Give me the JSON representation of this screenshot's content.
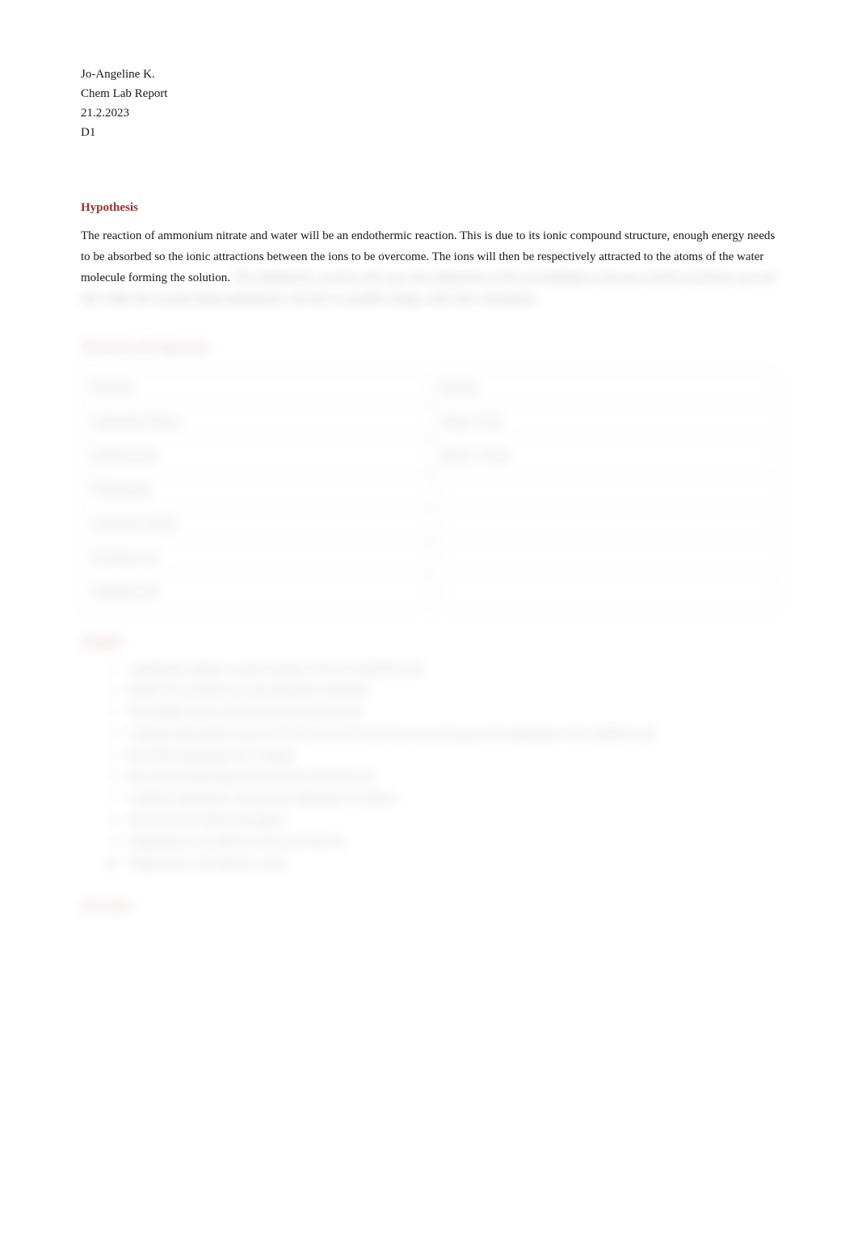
{
  "header": {
    "name": "Jo-Angeline K.",
    "course": "Chem Lab Report",
    "date": "21.2.2023",
    "section": "D1"
  },
  "hypothesis": {
    "heading": "Hypothesis",
    "visible_text": "The reaction of ammonium nitrate and water will be an endothermic reaction. This is due to its ionic compound structure, enough energy needs to be absorbed so the ionic attractions between the ions to be overcome. The ions will then be respectively attracted to the atoms of the water molecule forming the solution.",
    "blurred_line1": "The endothermic reaction will cause the temperature of the surroundings to decrease and the styrofoam cup",
    "blurred_line2": "will feel colder the reactant being endothermic will have a possible change value after calculations."
  },
  "materials": {
    "heading": "Materials and Apparatus",
    "columns": [
      "Materials",
      "Quantity"
    ],
    "rows": [
      [
        "Ammonium Nitrate",
        "10.0g ± 0.01g"
      ],
      [
        "Distilled water",
        "100cm ± 0.5cm"
      ],
      [
        "Thermometer",
        "1"
      ],
      [
        "Graduated cylinder",
        "1"
      ],
      [
        "Styrofoam cup",
        "1"
      ],
      [
        "Weighing scale",
        "1"
      ]
    ]
  },
  "method": {
    "heading": "Method",
    "steps": [
      "A graduated cylinder is used to measure 100 cm of distilled water",
      "Prepare the styrofoam cup and setup table stand/hook",
      "The distilled water is poured into the styrofoam cup",
      "Using the thermometer, insert it into the hole of the styrofoam cup and measure the temperature of the distilled water",
      "Record the temperature for 3 minutes",
      "Pour 10 g of ammonium nitrate into the styrofoam cup",
      "Using the temperature, measure the temperature of solution",
      "Slowly stir the solution throughout",
      "Temperature is recorded at a 30 second intervals",
      "Temperature is recorded for 5 trials"
    ]
  },
  "rawdata": {
    "heading": "Raw Data"
  },
  "colors": {
    "heading_color": "#9b2e2e",
    "text_color": "#1a1a1a",
    "background": "#ffffff",
    "table_border": "#999999"
  }
}
